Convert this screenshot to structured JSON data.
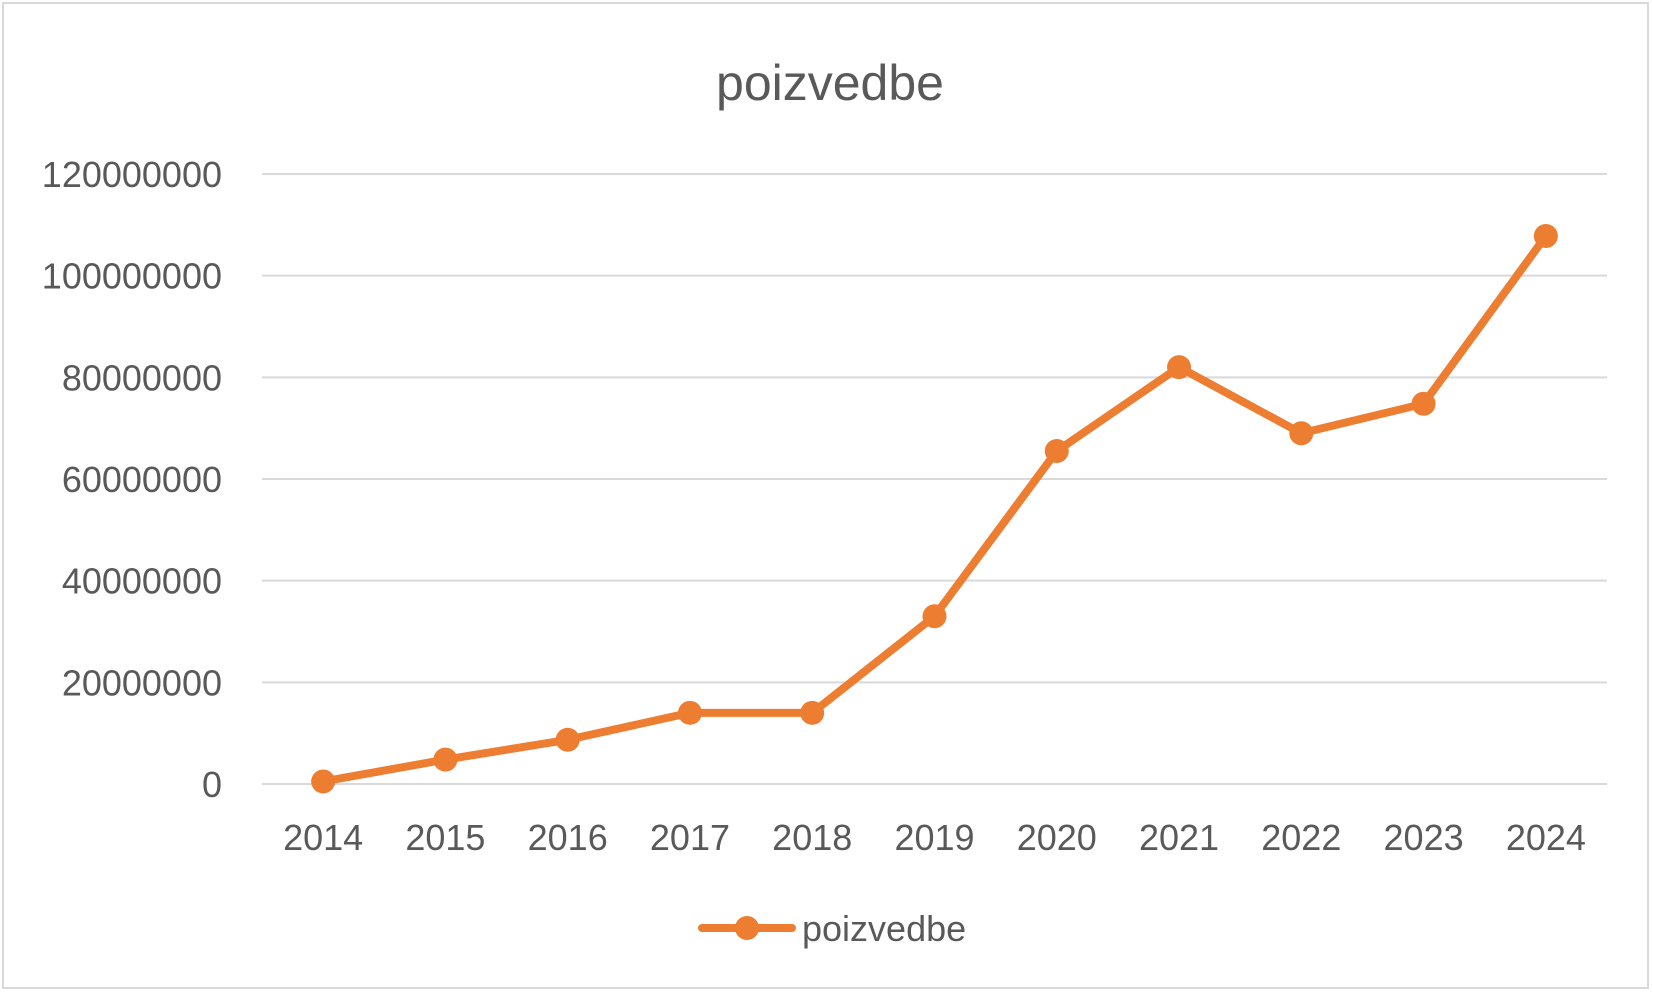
{
  "chart_data": {
    "type": "line",
    "title": "poizvedbe",
    "xlabel": "",
    "ylabel": "",
    "categories": [
      "2014",
      "2015",
      "2016",
      "2017",
      "2018",
      "2019",
      "2020",
      "2021",
      "2022",
      "2023",
      "2024"
    ],
    "series": [
      {
        "name": "poizvedbe",
        "color": "#ED7D31",
        "values": [
          500000,
          4800000,
          8700000,
          14000000,
          14000000,
          33000000,
          65500000,
          82000000,
          69000000,
          74800000,
          107800000
        ]
      }
    ],
    "ylim": [
      0,
      120000000
    ],
    "yticks": [
      "0",
      "20000000",
      "40000000",
      "60000000",
      "80000000",
      "100000000",
      "120000000"
    ],
    "grid": true,
    "legend_position": "bottom",
    "marker": "circle"
  }
}
